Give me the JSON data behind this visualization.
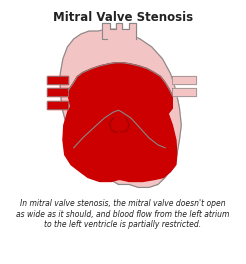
{
  "title": "Mitral Valve Stenosis",
  "title_fontsize": 8.5,
  "title_fontweight": "bold",
  "caption": "In mitral valve stenosis, the mitral valve doesn't open\nas wide as it should, and blood flow from the left atrium\nto the left ventricle is partially restricted.",
  "caption_fontsize": 5.5,
  "bg_color": "#ffffff",
  "heart_outer_color": "#f2c4c4",
  "heart_outline_color": "#888888",
  "blood_red": "#cc0000",
  "blood_dark": "#aa0000",
  "arrow_color": "#cc0000",
  "valve_color": "#888888",
  "text_color": "#222222"
}
